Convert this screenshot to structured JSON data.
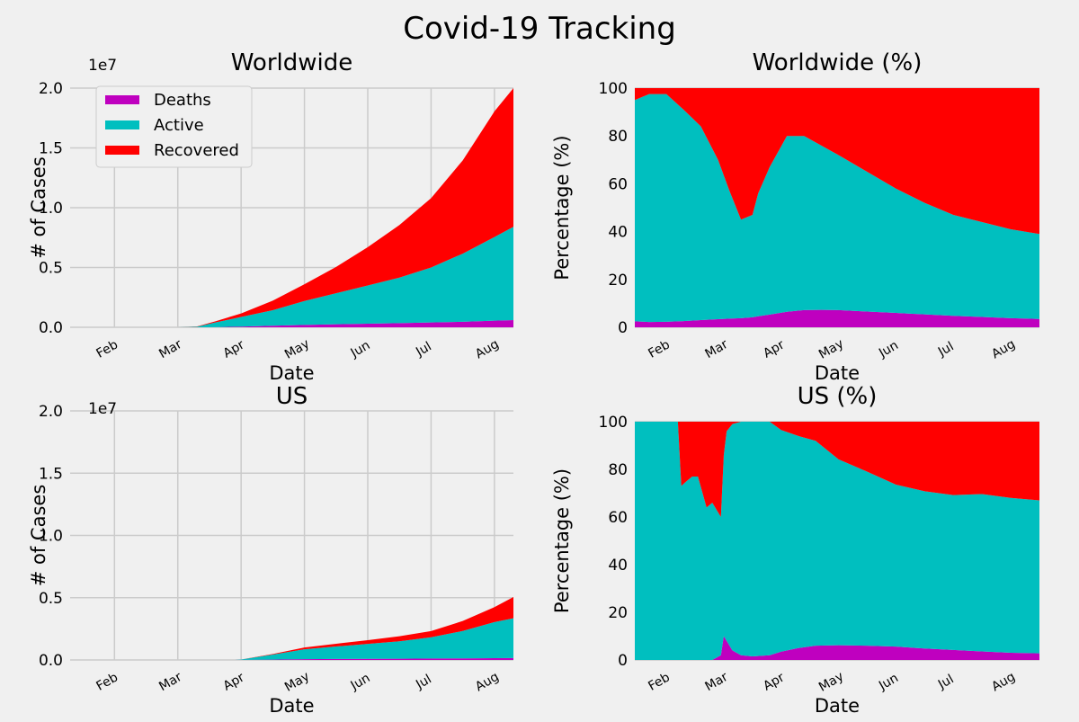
{
  "figure": {
    "title": "Covid-19 Tracking"
  },
  "colors": {
    "deaths": "#bf00bf",
    "active": "#00bfbf",
    "recovered": "#ff0000",
    "background": "#f0f0f0",
    "grid": "#cbcbcb"
  },
  "legend": [
    "Deaths",
    "Active",
    "Recovered"
  ],
  "chart_data": [
    {
      "id": "worldwide",
      "type": "area",
      "stacked": true,
      "title": "Worldwide",
      "xlabel": "Date",
      "ylabel": "# of Cases",
      "y_offset_label": "1e7",
      "ylim": [
        0,
        2.0
      ],
      "yticks": [
        "0.0",
        "0.5",
        "1.0",
        "1.5",
        "2.0"
      ],
      "xticks": [
        "Feb",
        "Mar",
        "Apr",
        "May",
        "Jun",
        "Jul",
        "Aug"
      ],
      "legend_position": "upper-left",
      "x": [
        0,
        1,
        1.3,
        1.6,
        2,
        2.5,
        3,
        3.5,
        4,
        4.5,
        5,
        5.5,
        6,
        6.3
      ],
      "series": [
        {
          "name": "Deaths",
          "values": [
            0,
            0,
            0.0,
            0.001,
            0.006,
            0.013,
            0.02,
            0.025,
            0.03,
            0.035,
            0.04,
            0.046,
            0.055,
            0.06
          ]
        },
        {
          "name": "Active",
          "values": [
            0,
            0,
            0.005,
            0.04,
            0.08,
            0.13,
            0.2,
            0.26,
            0.32,
            0.38,
            0.46,
            0.57,
            0.7,
            0.78
          ]
        },
        {
          "name": "Recovered",
          "values": [
            0,
            0,
            0.002,
            0.01,
            0.03,
            0.08,
            0.14,
            0.22,
            0.32,
            0.44,
            0.58,
            0.78,
            1.05,
            1.2
          ]
        }
      ]
    },
    {
      "id": "worldwide-pct",
      "type": "area",
      "stacked": true,
      "title": "Worldwide (%)",
      "xlabel": "Date",
      "ylabel": "Percentage (%)",
      "ylim": [
        0,
        100
      ],
      "yticks": [
        "0",
        "20",
        "40",
        "60",
        "80",
        "100"
      ],
      "xticks": [
        "Feb",
        "Mar",
        "Apr",
        "May",
        "Jun",
        "Jul",
        "Aug"
      ],
      "x": [
        -0.55,
        -0.3,
        0,
        0.3,
        0.6,
        0.9,
        1.1,
        1.3,
        1.5,
        1.6,
        1.8,
        2.1,
        2.4,
        2.7,
        3,
        3.5,
        4,
        4.5,
        5,
        5.5,
        6,
        6.5
      ],
      "series": [
        {
          "name": "Deaths",
          "values": [
            2.5,
            2.2,
            2.3,
            2.6,
            3,
            3.4,
            3.6,
            3.8,
            4.2,
            4.6,
            5.3,
            6.5,
            7.2,
            7.3,
            7.2,
            6.6,
            6,
            5.4,
            4.8,
            4.3,
            3.8,
            3.5
          ]
        },
        {
          "name": "Active",
          "values": [
            92.5,
            95.3,
            95.2,
            88.4,
            81,
            66.6,
            53.4,
            41.2,
            42.8,
            51.4,
            61.7,
            73.5,
            72.8,
            68.7,
            64.8,
            58.4,
            52,
            46.6,
            42.2,
            39.7,
            37.2,
            35.5
          ]
        },
        {
          "name": "Recovered",
          "values": [
            5,
            2.5,
            2.5,
            9,
            16,
            30,
            43,
            55,
            53,
            44,
            33,
            20,
            20,
            24,
            28,
            35,
            42,
            48,
            53,
            56,
            59,
            61
          ]
        }
      ]
    },
    {
      "id": "us",
      "type": "area",
      "stacked": true,
      "title": "US",
      "xlabel": "Date",
      "ylabel": "# of Cases",
      "y_offset_label": "1e7",
      "ylim": [
        0,
        2.0
      ],
      "yticks": [
        "0.0",
        "0.5",
        "1.0",
        "1.5",
        "2.0"
      ],
      "xticks": [
        "Feb",
        "Mar",
        "Apr",
        "May",
        "Jun",
        "Jul",
        "Aug"
      ],
      "x": [
        0,
        1.9,
        2,
        2.5,
        3,
        3.5,
        4,
        4.5,
        5,
        5.5,
        6,
        6.3
      ],
      "series": [
        {
          "name": "Deaths",
          "values": [
            0,
            0,
            0.0005,
            0.003,
            0.006,
            0.008,
            0.009,
            0.01,
            0.012,
            0.013,
            0.014,
            0.015
          ]
        },
        {
          "name": "Active",
          "values": [
            0,
            0,
            0.003,
            0.04,
            0.08,
            0.1,
            0.12,
            0.14,
            0.17,
            0.22,
            0.29,
            0.32
          ]
        },
        {
          "name": "Recovered",
          "values": [
            0,
            0,
            0.0005,
            0.005,
            0.014,
            0.022,
            0.03,
            0.04,
            0.05,
            0.08,
            0.12,
            0.17
          ]
        }
      ]
    },
    {
      "id": "us-pct",
      "type": "area",
      "stacked": true,
      "title": "US (%)",
      "xlabel": "Date",
      "ylabel": "Percentage (%)",
      "ylim": [
        0,
        100
      ],
      "yticks": [
        "0",
        "20",
        "40",
        "60",
        "80",
        "100"
      ],
      "xticks": [
        "Feb",
        "Mar",
        "Apr",
        "May",
        "Jun",
        "Jul",
        "Aug"
      ],
      "x": [
        -0.55,
        0.2,
        0.26,
        0.35,
        0.45,
        0.55,
        0.7,
        0.8,
        0.95,
        1.0,
        1.05,
        1.15,
        1.3,
        1.5,
        1.8,
        2.0,
        2.3,
        2.6,
        3,
        3.5,
        4,
        4.5,
        5,
        5.5,
        6,
        6.5
      ],
      "series": [
        {
          "name": "Deaths",
          "values": [
            0,
            0,
            0,
            0,
            0,
            0,
            0,
            0,
            2,
            10,
            8,
            4,
            2,
            1.5,
            2,
            3.5,
            5,
            6,
            6.2,
            6,
            5.6,
            4.8,
            4.2,
            3.6,
            3,
            2.8
          ]
        },
        {
          "name": "Active",
          "values": [
            100,
            100,
            73,
            75,
            77,
            77,
            64,
            66,
            58,
            76,
            88,
            95,
            98,
            98.5,
            98,
            93,
            89,
            86,
            78,
            73,
            68,
            66,
            65,
            66,
            65,
            64.2
          ]
        },
        {
          "name": "Recovered",
          "values": [
            0,
            0,
            27,
            25,
            23,
            23,
            36,
            34,
            40,
            14,
            4,
            1,
            0,
            0,
            0,
            3.5,
            6,
            8,
            15.8,
            21,
            26.4,
            29.2,
            30.8,
            30.4,
            32,
            33
          ]
        }
      ]
    }
  ]
}
